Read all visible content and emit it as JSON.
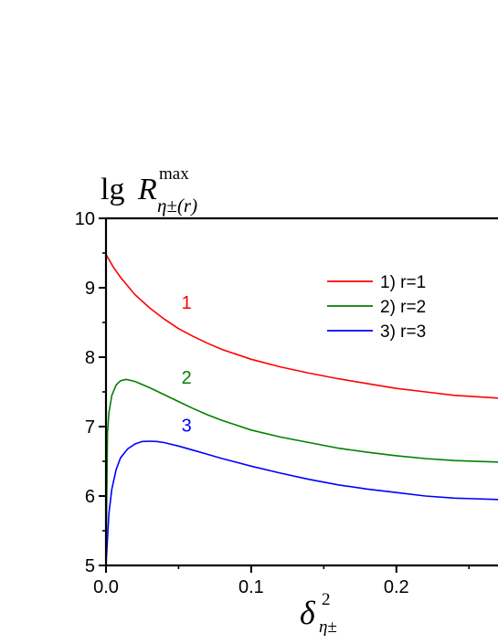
{
  "chart_data": {
    "type": "line",
    "title": "",
    "ylabel": {
      "base": "lg",
      "symbol": "R",
      "superscript": "max",
      "subscript": "η±(r)"
    },
    "xlabel": {
      "symbol": "δ",
      "superscript": "2",
      "subscript": "η±"
    },
    "xlim": [
      0,
      0.27
    ],
    "ylim": [
      5,
      10
    ],
    "x_ticks": [
      0.0,
      0.1,
      0.2
    ],
    "x_tick_labels": [
      "0.0",
      "0.1",
      "0.2"
    ],
    "y_ticks": [
      5,
      6,
      7,
      8,
      9,
      10
    ],
    "y_tick_labels": [
      "5",
      "6",
      "7",
      "8",
      "9",
      "10"
    ],
    "legend_position": "top-right",
    "series": [
      {
        "name": "1) r=1",
        "color": "#ff0000",
        "label": "1",
        "label_at": [
          0.052,
          8.7
        ],
        "points": [
          [
            0.0,
            9.48
          ],
          [
            0.005,
            9.3
          ],
          [
            0.01,
            9.15
          ],
          [
            0.02,
            8.9
          ],
          [
            0.03,
            8.71
          ],
          [
            0.04,
            8.55
          ],
          [
            0.05,
            8.41
          ],
          [
            0.06,
            8.3
          ],
          [
            0.07,
            8.2
          ],
          [
            0.08,
            8.11
          ],
          [
            0.1,
            7.97
          ],
          [
            0.12,
            7.86
          ],
          [
            0.14,
            7.77
          ],
          [
            0.16,
            7.69
          ],
          [
            0.18,
            7.62
          ],
          [
            0.2,
            7.55
          ],
          [
            0.22,
            7.5
          ],
          [
            0.24,
            7.45
          ],
          [
            0.27,
            7.41
          ]
        ]
      },
      {
        "name": "2) r=2",
        "color": "#008000",
        "label": "2",
        "label_at": [
          0.052,
          7.62
        ],
        "points": [
          [
            0.0,
            5.0
          ],
          [
            0.001,
            6.9
          ],
          [
            0.002,
            7.2
          ],
          [
            0.004,
            7.45
          ],
          [
            0.007,
            7.6
          ],
          [
            0.01,
            7.66
          ],
          [
            0.014,
            7.68
          ],
          [
            0.02,
            7.65
          ],
          [
            0.03,
            7.56
          ],
          [
            0.04,
            7.46
          ],
          [
            0.05,
            7.36
          ],
          [
            0.06,
            7.26
          ],
          [
            0.07,
            7.17
          ],
          [
            0.08,
            7.09
          ],
          [
            0.1,
            6.95
          ],
          [
            0.12,
            6.85
          ],
          [
            0.14,
            6.77
          ],
          [
            0.16,
            6.69
          ],
          [
            0.18,
            6.63
          ],
          [
            0.2,
            6.58
          ],
          [
            0.22,
            6.54
          ],
          [
            0.24,
            6.51
          ],
          [
            0.27,
            6.49
          ]
        ]
      },
      {
        "name": "3) r=3",
        "color": "#0000ff",
        "label": "3",
        "label_at": [
          0.052,
          6.93
        ],
        "points": [
          [
            0.0,
            5.0
          ],
          [
            0.002,
            5.75
          ],
          [
            0.004,
            6.1
          ],
          [
            0.007,
            6.38
          ],
          [
            0.01,
            6.55
          ],
          [
            0.015,
            6.68
          ],
          [
            0.02,
            6.75
          ],
          [
            0.025,
            6.785
          ],
          [
            0.03,
            6.79
          ],
          [
            0.035,
            6.785
          ],
          [
            0.04,
            6.77
          ],
          [
            0.05,
            6.72
          ],
          [
            0.06,
            6.66
          ],
          [
            0.07,
            6.6
          ],
          [
            0.08,
            6.54
          ],
          [
            0.1,
            6.43
          ],
          [
            0.12,
            6.33
          ],
          [
            0.14,
            6.24
          ],
          [
            0.16,
            6.16
          ],
          [
            0.18,
            6.1
          ],
          [
            0.2,
            6.05
          ],
          [
            0.22,
            6.0
          ],
          [
            0.24,
            5.97
          ],
          [
            0.27,
            5.95
          ]
        ]
      }
    ]
  }
}
